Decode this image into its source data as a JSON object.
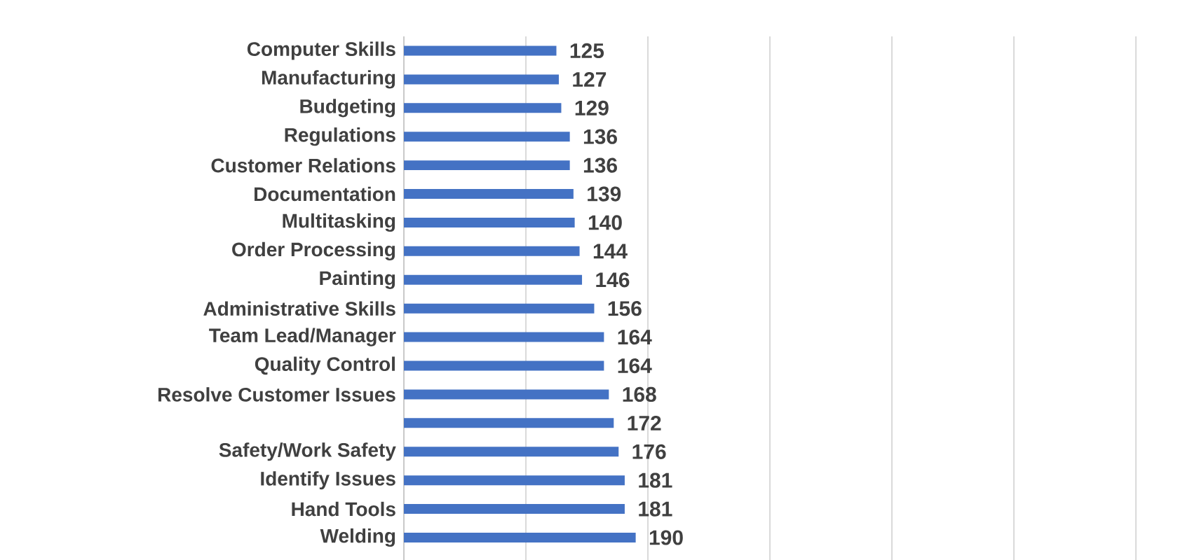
{
  "chart_data": {
    "type": "bar",
    "orientation": "horizontal",
    "categories": [
      "Computer Skills",
      "Manufacturing",
      "Budgeting",
      "Regulations",
      "Customer Relations",
      "Documentation",
      "Multitasking",
      "Order Processing",
      "Painting",
      "Administrative Skills",
      "Team Lead/Manager",
      "Quality Control",
      "Resolve Customer Issues",
      null,
      "Safety/Work Safety",
      "Identify Issues",
      "Hand Tools",
      "Welding"
    ],
    "values": [
      125,
      127,
      129,
      136,
      136,
      139,
      140,
      144,
      146,
      156,
      164,
      164,
      168,
      172,
      176,
      181,
      181,
      190
    ],
    "color": "#4472c4",
    "xlim": [
      0,
      600
    ],
    "xticks": [
      {
        "value": 0,
        "label": null
      },
      {
        "value": 100,
        "label": null
      },
      {
        "value": 200,
        "label": null
      },
      {
        "value": 300,
        "label": null
      },
      {
        "value": 400,
        "label": null
      },
      {
        "value": 500,
        "label": null
      },
      {
        "value": 600,
        "label": null
      }
    ],
    "grid": "x",
    "data_labels": true,
    "tick_labels": "y"
  }
}
